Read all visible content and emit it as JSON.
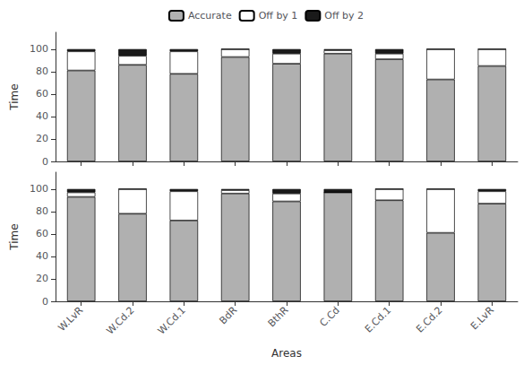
{
  "chart_data": [
    {
      "type": "bar",
      "stacked": true,
      "categories": [
        "W.LvR",
        "W.Cd.2",
        "W.Cd.1",
        "BdR",
        "BthR",
        "C.Cd",
        "E.Cd.1",
        "E.Cd.2",
        "E.LvR"
      ],
      "series": [
        {
          "name": "Accurate",
          "color": "#b0b0b0",
          "values": [
            81,
            86,
            78,
            93,
            87,
            96,
            91,
            73,
            85
          ]
        },
        {
          "name": "Off by 1",
          "color": "#ffffff",
          "values": [
            17,
            8,
            20,
            7,
            9,
            3,
            5,
            27,
            15
          ]
        },
        {
          "name": "Off by 2",
          "color": "#1a1a1a",
          "values": [
            2,
            6,
            2,
            0,
            4,
            1,
            4,
            0,
            0
          ]
        }
      ],
      "ylabel": "Time",
      "ylim": [
        0,
        115
      ],
      "yticks": [
        0,
        20,
        40,
        60,
        80,
        100
      ],
      "grid": false,
      "legend": "top",
      "tick_labels": "y"
    },
    {
      "type": "bar",
      "stacked": true,
      "categories": [
        "W.LvR",
        "W.Cd.2",
        "W.Cd.1",
        "BdR",
        "BthR",
        "C.Cd",
        "E.Cd.1",
        "E.Cd.2",
        "E.LvR"
      ],
      "series": [
        {
          "name": "Accurate",
          "color": "#b0b0b0",
          "values": [
            93,
            78,
            72,
            96,
            89,
            97,
            90,
            61,
            87
          ]
        },
        {
          "name": "Off by 1",
          "color": "#ffffff",
          "values": [
            4,
            22,
            26,
            3,
            7,
            0,
            10,
            39,
            11
          ]
        },
        {
          "name": "Off by 2",
          "color": "#1a1a1a",
          "values": [
            3,
            0,
            2,
            1,
            4,
            3,
            0,
            0,
            2
          ]
        }
      ],
      "xlabel": "Areas",
      "ylabel": "Time",
      "ylim": [
        0,
        115
      ],
      "yticks": [
        0,
        20,
        40,
        60,
        80,
        100
      ],
      "grid": false
    }
  ]
}
